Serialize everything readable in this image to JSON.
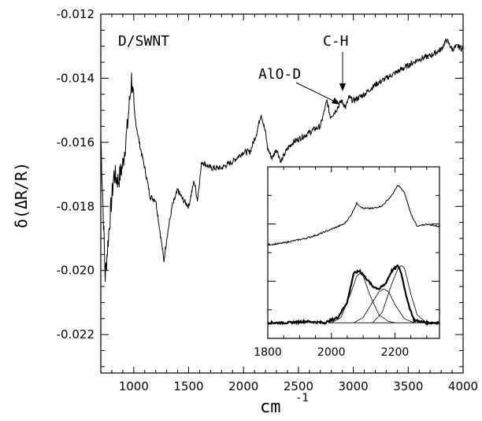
{
  "chart_data": [
    {
      "type": "line",
      "xlabel": "cm",
      "xlabel_superscript": "-1",
      "ylabel": "δ(ΔR/R)",
      "xlim": [
        700,
        4000
      ],
      "ylim": [
        -0.0232,
        -0.012
      ],
      "xticks": [
        1000,
        1500,
        2000,
        2500,
        3000,
        3500,
        4000
      ],
      "xtick_labels": [
        "1000",
        "1500",
        "2000",
        "2500",
        "3000",
        "3500",
        "4000"
      ],
      "yticks": [
        -0.012,
        -0.014,
        -0.016,
        -0.018,
        -0.02,
        -0.022
      ],
      "ytick_labels": [
        "-0.012",
        "-0.014",
        "-0.016",
        "-0.018",
        "-0.020",
        "-0.022"
      ],
      "grid": false,
      "series": [
        {
          "x": [
            700,
            740,
            780,
            820,
            860,
            900,
            940,
            980,
            1010,
            1050,
            1100,
            1150,
            1200,
            1240,
            1275,
            1300,
            1350,
            1400,
            1450,
            1500,
            1550,
            1580,
            1620,
            1660,
            1700,
            1800,
            1900,
            2000,
            2060,
            2120,
            2160,
            2200,
            2220,
            2260,
            2300,
            2340,
            2400,
            2450,
            2500,
            2550,
            2600,
            2640,
            2700,
            2760,
            2790,
            2820,
            2860,
            2890,
            2930,
            2960,
            3000,
            3100,
            3200,
            3300,
            3400,
            3500,
            3600,
            3700,
            3800,
            3850,
            3900,
            3950,
            4000
          ],
          "y": [
            -0.0158,
            -0.0202,
            -0.0185,
            -0.017,
            -0.0172,
            -0.0167,
            -0.0156,
            -0.014,
            -0.0152,
            -0.016,
            -0.0168,
            -0.0177,
            -0.0178,
            -0.0188,
            -0.0197,
            -0.019,
            -0.018,
            -0.0175,
            -0.0178,
            -0.018,
            -0.0172,
            -0.0178,
            -0.0166,
            -0.0167,
            -0.0168,
            -0.0168,
            -0.0166,
            -0.0163,
            -0.0163,
            -0.0157,
            -0.0151,
            -0.0157,
            -0.0162,
            -0.0165,
            -0.0162,
            -0.0166,
            -0.0162,
            -0.016,
            -0.0159,
            -0.0158,
            -0.0157,
            -0.0156,
            -0.0155,
            -0.0147,
            -0.0152,
            -0.0151,
            -0.0149,
            -0.0147,
            -0.0149,
            -0.0146,
            -0.0147,
            -0.0145,
            -0.0142,
            -0.014,
            -0.0138,
            -0.0136,
            -0.0134,
            -0.0133,
            -0.0131,
            -0.0128,
            -0.0131,
            -0.013,
            -0.0131
          ]
        }
      ]
    },
    {
      "type": "line",
      "xlim": [
        1800,
        2340
      ],
      "xticks": [
        1800,
        2000,
        2200
      ],
      "xtick_labels": [
        "1800",
        "2000",
        "2200"
      ],
      "y_units": "arbitrary",
      "grid": false,
      "series": [
        {
          "x": [
            1800,
            1840,
            1880,
            1920,
            1960,
            2000,
            2040,
            2060,
            2080,
            2100,
            2130,
            2160,
            2190,
            2210,
            2230,
            2250,
            2270,
            2300,
            2340
          ],
          "y": [
            0.6,
            0.61,
            0.63,
            0.65,
            0.68,
            0.72,
            0.76,
            0.82,
            0.92,
            0.88,
            0.88,
            0.9,
            0.98,
            1.06,
            1.0,
            0.84,
            0.74,
            0.76,
            0.74
          ]
        },
        {
          "x": [
            1800,
            1860,
            1920,
            1980,
            2020,
            2050,
            2070,
            2090,
            2110,
            2130,
            2150,
            2170,
            2190,
            2210,
            2220,
            2240,
            2260,
            2300,
            2340
          ],
          "y": [
            0.0,
            0.0,
            0.01,
            0.0,
            0.04,
            0.16,
            0.38,
            0.4,
            0.34,
            0.28,
            0.26,
            0.3,
            0.4,
            0.44,
            0.38,
            0.16,
            0.02,
            0.0,
            0.0
          ]
        },
        {
          "x": [
            2000,
            2030,
            2060,
            2080,
            2090,
            2100,
            2120,
            2150,
            2180,
            2200
          ],
          "y": [
            0.0,
            0.04,
            0.22,
            0.36,
            0.38,
            0.36,
            0.22,
            0.06,
            0.01,
            0.0
          ]
        },
        {
          "x": [
            2070,
            2100,
            2130,
            2150,
            2165,
            2180,
            2200,
            2230,
            2260
          ],
          "y": [
            0.0,
            0.04,
            0.16,
            0.24,
            0.26,
            0.24,
            0.14,
            0.03,
            0.0
          ]
        },
        {
          "x": [
            2130,
            2160,
            2190,
            2210,
            2220,
            2230,
            2250,
            2270,
            2300
          ],
          "y": [
            0.0,
            0.08,
            0.3,
            0.42,
            0.44,
            0.42,
            0.22,
            0.06,
            0.0
          ]
        }
      ]
    }
  ],
  "annotations": {
    "sample_label": "D/SWNT",
    "peak_1_label": "AlO-D",
    "peak_2_label": "C-H"
  }
}
